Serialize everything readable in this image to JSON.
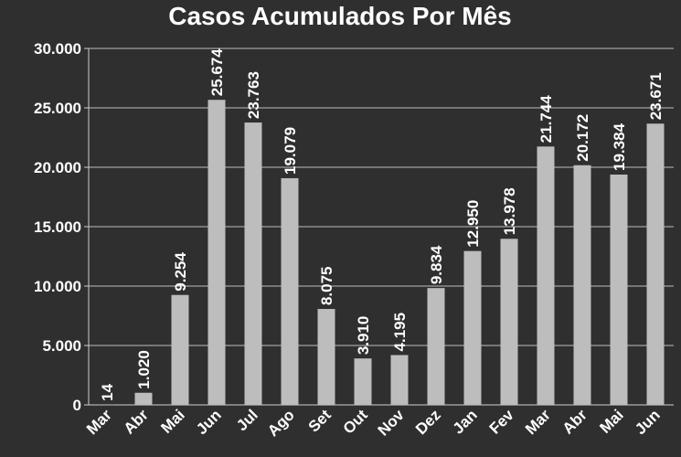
{
  "chart_data": {
    "type": "bar",
    "title": "Casos Acumulados Por Mês",
    "xlabel": "",
    "ylabel": "",
    "categories": [
      "Mar",
      "Abr",
      "Mai",
      "Jun",
      "Jul",
      "Ago",
      "Set",
      "Out",
      "Nov",
      "Dez",
      "Jan",
      "Fev",
      "Mar",
      "Abr",
      "Mai",
      "Jun"
    ],
    "values": [
      14,
      1020,
      9254,
      25674,
      23763,
      19079,
      8075,
      3910,
      4195,
      9834,
      12950,
      13978,
      21744,
      20172,
      19384,
      23671
    ],
    "data_labels": [
      "14",
      "1.020",
      "9.254",
      "25.674",
      "23.763",
      "19.079",
      "8.075",
      "3.910",
      "4.195",
      "9.834",
      "12.950",
      "13.978",
      "21.744",
      "20.172",
      "19.384",
      "23.671"
    ],
    "ylim": [
      0,
      30000
    ],
    "yticks": [
      0,
      5000,
      10000,
      15000,
      20000,
      25000,
      30000
    ],
    "ytick_labels": [
      "0",
      "5.000",
      "10.000",
      "15.000",
      "20.000",
      "25.000",
      "30.000"
    ],
    "grid": true,
    "legend": "none",
    "colors": {
      "background": "#2f2f2f",
      "bar": "#bdbdbd",
      "grid": "#bdbdbd",
      "text": "#ffffff"
    }
  }
}
